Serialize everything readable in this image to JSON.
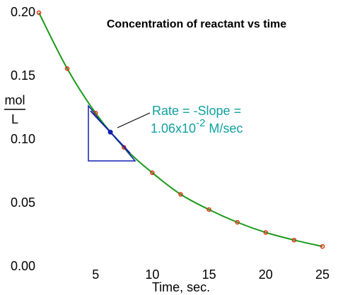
{
  "chart_data": {
    "type": "line",
    "title": "Concentration of reactant vs time",
    "x_label": "Time, sec.",
    "y_label_numerator": "mol",
    "y_label_denominator": "L",
    "x": [
      0,
      2.5,
      5,
      7.5,
      10,
      12.5,
      15,
      17.5,
      20,
      22.5,
      25
    ],
    "series": [
      {
        "name": "concentration",
        "line_color": "#1a9a1a",
        "marker_color": "#e03010",
        "values": [
          0.2,
          0.156,
          0.121,
          0.094,
          0.074,
          0.057,
          0.045,
          0.035,
          0.027,
          0.021,
          0.016
        ]
      }
    ],
    "tangent_point": {
      "x": 6.3,
      "y": 0.106,
      "color": "#1020b0"
    },
    "annotation": {
      "line1": "Rate = -Slope =",
      "mantissa": "1.06x10",
      "exponent": "-2",
      "unit": "M/sec",
      "color": "#10a0a0"
    },
    "xlim": [
      0,
      25
    ],
    "ylim": [
      0,
      0.2
    ],
    "xticks": [
      5,
      10,
      15,
      20,
      25
    ],
    "yticks": [
      {
        "value": 0,
        "label": "0.00"
      },
      {
        "value": 0.05,
        "label": "0.05"
      },
      {
        "value": 0.1,
        "label": "0.10"
      },
      {
        "value": 0.15,
        "label": "0.15"
      },
      {
        "value": 0.2,
        "label": "0.20"
      }
    ]
  }
}
